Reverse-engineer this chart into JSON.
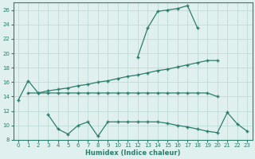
{
  "xlabel": "Humidex (Indice chaleur)",
  "color": "#2d7d6e",
  "bg_color": "#dff0ee",
  "grid_color": "#b8d8d4",
  "ylim": [
    8,
    27
  ],
  "yticks": [
    8,
    10,
    12,
    14,
    16,
    18,
    20,
    22,
    24,
    26
  ],
  "xticks": [
    0,
    1,
    2,
    3,
    4,
    5,
    6,
    7,
    8,
    9,
    10,
    11,
    12,
    13,
    14,
    15,
    16,
    17,
    18,
    19,
    20,
    21,
    22,
    23
  ],
  "line_top_x": [
    12,
    13,
    14,
    15,
    16,
    17,
    18
  ],
  "line_top_y": [
    19.5,
    23.5,
    25.8,
    26.0,
    26.2,
    26.6,
    23.5
  ],
  "line_upper_x": [
    0,
    1,
    2,
    3,
    4,
    5,
    6,
    7,
    8,
    9,
    10,
    11,
    12,
    13,
    14,
    15,
    16,
    17,
    18,
    19,
    20
  ],
  "line_upper_y": [
    13.5,
    16.2,
    14.5,
    14.8,
    15.0,
    15.2,
    15.5,
    15.7,
    16.0,
    16.2,
    16.5,
    16.8,
    17.0,
    17.3,
    17.6,
    17.8,
    18.1,
    18.4,
    18.7,
    19.0,
    19.0
  ],
  "line_flat_x": [
    1,
    2,
    3,
    4,
    5,
    6,
    7,
    8,
    9,
    10,
    11,
    12,
    13,
    14,
    15,
    16,
    17,
    18,
    19,
    20
  ],
  "line_flat_y": [
    14.5,
    14.5,
    14.5,
    14.5,
    14.5,
    14.5,
    14.5,
    14.5,
    14.5,
    14.5,
    14.5,
    14.5,
    14.5,
    14.5,
    14.5,
    14.5,
    14.5,
    14.5,
    14.5,
    14.0
  ],
  "line_bot_x": [
    3,
    4,
    5,
    6,
    7,
    8,
    9,
    10,
    11,
    12,
    13,
    14,
    15,
    16,
    17,
    18,
    19,
    20,
    21,
    22,
    23
  ],
  "line_bot_y": [
    11.5,
    9.5,
    8.8,
    10.0,
    10.5,
    8.5,
    10.5,
    10.5,
    10.5,
    10.5,
    10.5,
    10.5,
    10.3,
    10.0,
    9.8,
    9.5,
    9.2,
    9.0,
    11.8,
    10.2,
    9.2
  ]
}
